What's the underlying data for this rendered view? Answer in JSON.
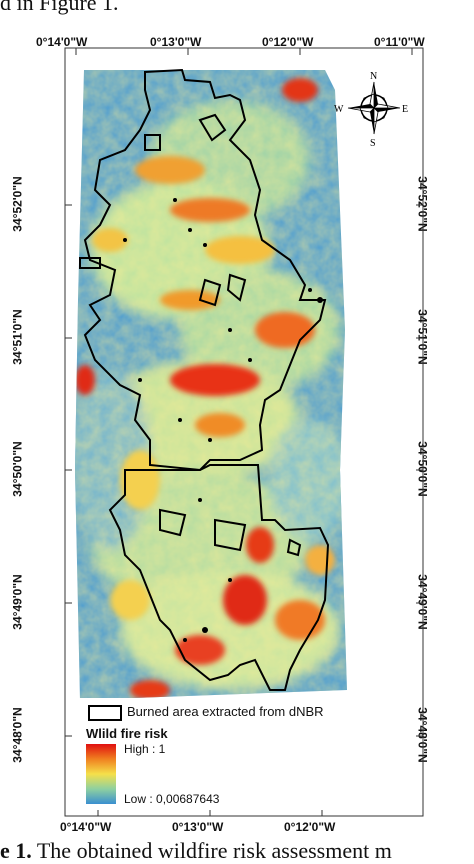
{
  "captions": {
    "top": "d in Figure 1.",
    "bottom_bold": "e 1.",
    "bottom_rest": " The obtained wildfire risk assessment m"
  },
  "grid": {
    "top_lon": [
      "0°14'0\"W",
      "0°13'0\"W",
      "0°12'0\"W",
      "0°11'0\"W"
    ],
    "bottom_lon": [
      "0°14'0\"W",
      "0°13'0\"W",
      "0°12'0\"W"
    ],
    "left_lat": [
      "34°52'0\"N",
      "34°51'0\"N",
      "34°50'0\"N",
      "34°49'0\"N",
      "34°48'0\"N"
    ],
    "right_lat": [
      "34°52'0\"N",
      "34°51'0\"N",
      "34°50'0\"N",
      "34°49'0\"N",
      "34°48'0\"N"
    ]
  },
  "compass": {
    "n": "N",
    "s": "S",
    "e": "E",
    "w": "W"
  },
  "legend": {
    "burned_label": "Burned area extracted from dNBR",
    "title": "Wlild fire risk",
    "high": "High : 1",
    "low": "Low : 0,00687643"
  },
  "colors": {
    "high": "#e01010",
    "mid": "#f5e04a",
    "low": "#3a8fd0",
    "burn_outline": "#000000"
  }
}
